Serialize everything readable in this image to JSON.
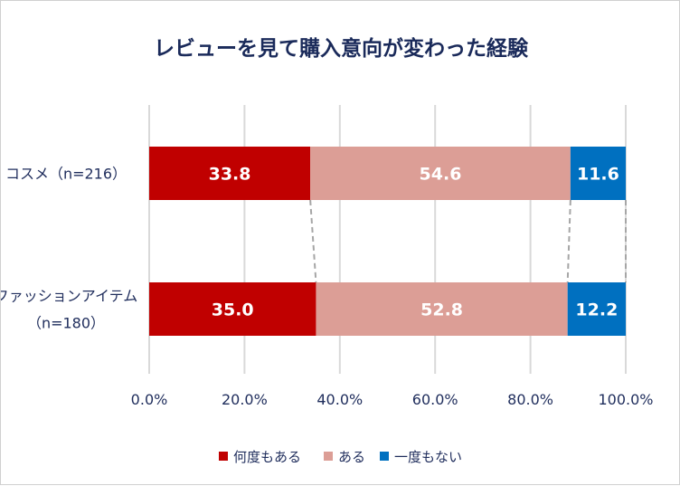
{
  "chart_data": {
    "type": "bar",
    "orientation": "horizontal",
    "stacked": true,
    "title": "レビューを見て購入意向が変わった経験",
    "categories": [
      [
        "コスメ（n=216）"
      ],
      [
        "ファッションアイテム",
        "（n=180）"
      ]
    ],
    "series": [
      {
        "name": "何度もある",
        "color": "#c00000",
        "values": [
          33.8,
          35.0
        ]
      },
      {
        "name": "ある",
        "color": "#dc9e96",
        "values": [
          54.6,
          52.8
        ]
      },
      {
        "name": "一度もない",
        "color": "#0070c0",
        "values": [
          11.6,
          12.2
        ]
      }
    ],
    "xlim": [
      0,
      100
    ],
    "xticks": [
      "0.0%",
      "20.0%",
      "40.0%",
      "60.0%",
      "80.0%",
      "100.0%"
    ],
    "grid": true,
    "series_lines": true,
    "legend": "bottom"
  }
}
